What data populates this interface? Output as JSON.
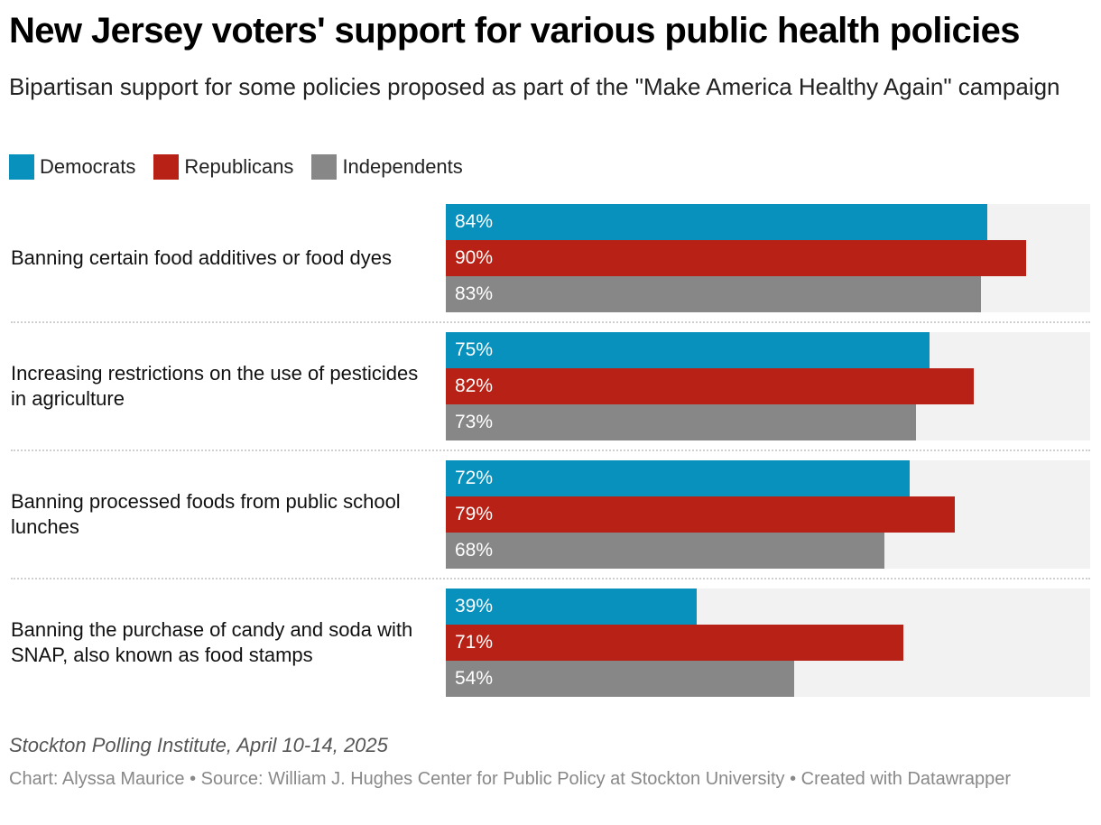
{
  "header": {
    "title": "New Jersey voters' support for various public health policies",
    "subtitle": "Bipartisan support for some policies proposed as part of the \"Make America Healthy Again\" campaign"
  },
  "legend": [
    {
      "label": "Democrats",
      "color": "#0891bd"
    },
    {
      "label": "Republicans",
      "color": "#b82115"
    },
    {
      "label": "Independents",
      "color": "#878787"
    }
  ],
  "chart_data": {
    "type": "bar",
    "orientation": "horizontal",
    "grouped": true,
    "title": "New Jersey voters' support for various public health policies",
    "subtitle": "Bipartisan support for some policies proposed as part of the \"Make America Healthy Again\" campaign",
    "categories": [
      "Banning certain food additives or food dyes",
      "Increasing restrictions on the use of pesticides in agriculture",
      "Banning processed foods from public school lunches",
      "Banning the purchase of candy and soda with SNAP, also known as food stamps"
    ],
    "series": [
      {
        "name": "Democrats",
        "color": "#0891bd",
        "values": [
          84,
          75,
          72,
          39
        ]
      },
      {
        "name": "Republicans",
        "color": "#b82115",
        "values": [
          90,
          82,
          79,
          71
        ]
      },
      {
        "name": "Independents",
        "color": "#878787",
        "values": [
          83,
          73,
          68,
          54
        ]
      }
    ],
    "value_suffix": "%",
    "xlim": [
      0,
      100
    ],
    "xlabel": "",
    "ylabel": "",
    "grid": false,
    "legend_position": "top-left",
    "track_color": "#f2f2f2"
  },
  "footer": {
    "notes": "Stockton Polling Institute, April 10-14, 2025",
    "credit": "Chart: Alyssa Maurice • Source: William J. Hughes Center for Public Policy at Stockton University • Created with Datawrapper"
  }
}
